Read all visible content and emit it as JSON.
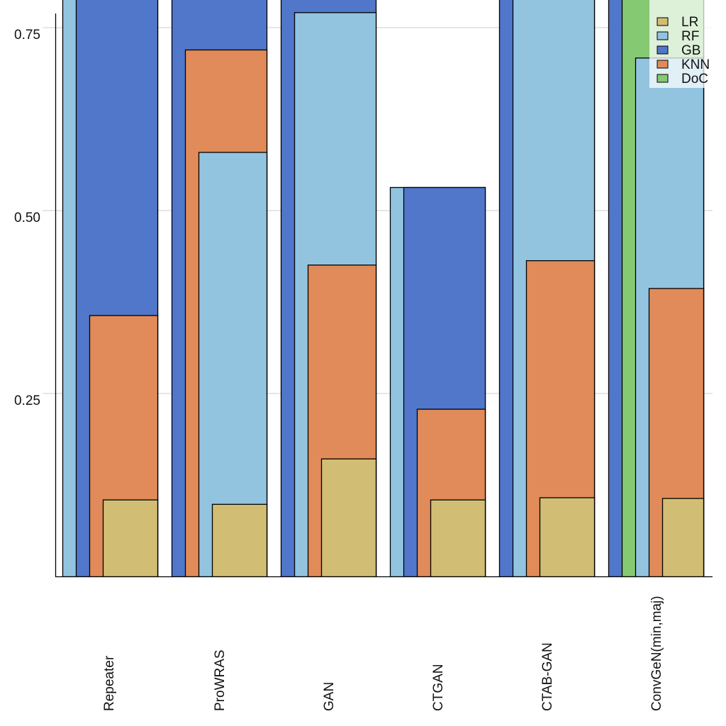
{
  "chart_data": {
    "type": "bar",
    "title": "",
    "xlabel": "",
    "ylabel": "",
    "ylim": [
      0,
      0.8
    ],
    "yticks": [
      0.25,
      0.5,
      0.75
    ],
    "ytick_labels": [
      "0.25",
      "0.50",
      "0.75"
    ],
    "grid": "horizontal",
    "legend_position": "top-right",
    "overlapping_bars": true,
    "categories": [
      "Repeater",
      "ProWRAS",
      "GAN",
      "CTGAN",
      "CTAB-GAN",
      "ConvGeN(min,maj)"
    ],
    "series": [
      {
        "name": "LR",
        "color": "#d1be74",
        "values": [
          0.105,
          0.099,
          0.161,
          0.105,
          0.108,
          0.107
        ]
      },
      {
        "name": "RF",
        "color": "#92c4e0",
        "values": [
          0.8,
          0.58,
          0.771,
          0.532,
          0.8,
          0.709
        ]
      },
      {
        "name": "GB",
        "color": "#5177cb",
        "values": [
          0.8,
          0.8,
          0.8,
          0.532,
          0.8,
          0.8
        ]
      },
      {
        "name": "KNN",
        "color": "#e08b59",
        "values": [
          0.357,
          0.72,
          0.426,
          0.229,
          0.432,
          0.394
        ]
      },
      {
        "name": "DoC",
        "color": "#85c972",
        "values": [
          null,
          null,
          null,
          null,
          null,
          0.8
        ]
      }
    ],
    "bar_order_left_to_right": [
      [
        "RF",
        "GB",
        "KNN",
        "LR"
      ],
      [
        "GB",
        "KNN",
        "RF",
        "LR"
      ],
      [
        "GB",
        "RF",
        "KNN",
        "LR"
      ],
      [
        "RF",
        "GB",
        "KNN",
        "LR"
      ],
      [
        "GB",
        "RF",
        "KNN",
        "LR"
      ],
      [
        "GB",
        "DoC",
        "RF",
        "KNN",
        "LR"
      ]
    ],
    "note": "Values of 0.80 indicate bars extending beyond the visible top of the plot (clipped)."
  }
}
